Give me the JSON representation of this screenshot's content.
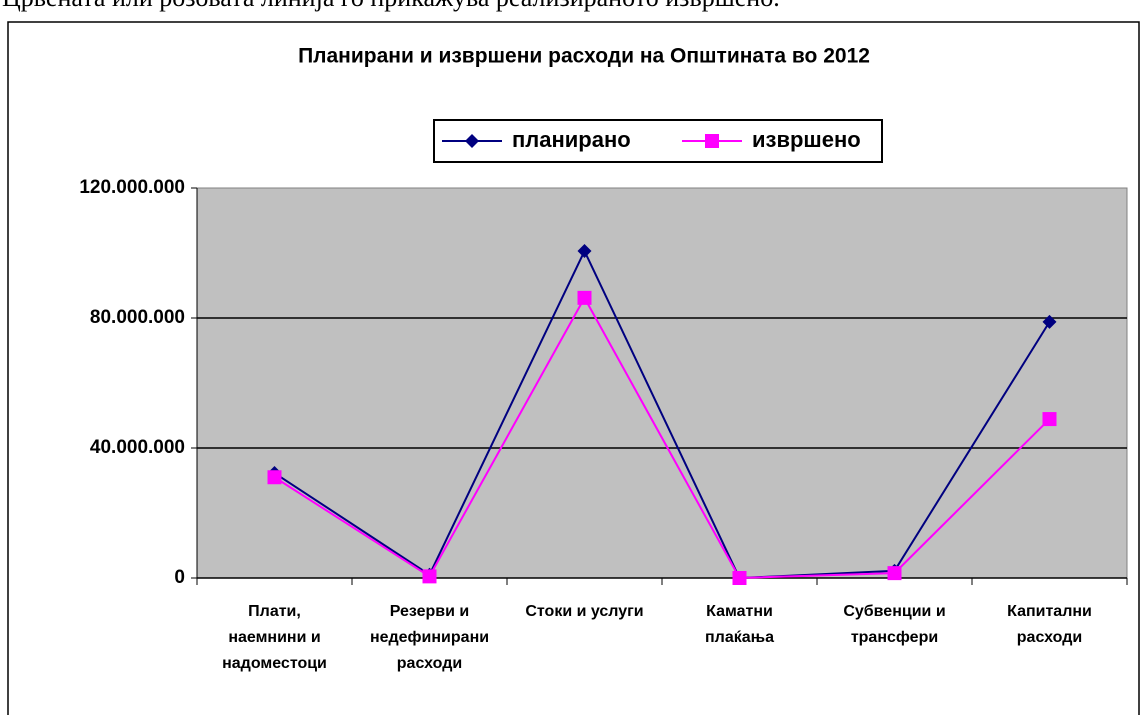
{
  "caption": "Црвената или розовата линија го прикажува реализираното извршено.",
  "chart_data": {
    "type": "line",
    "title": "Планирани и извршени расходи на Општината во 2012",
    "categories": [
      "Плати,\nнаемнини и\nнадоместоци",
      "Резерви и\nнедефинирани\nрасходи",
      "Стоки и услуги",
      "Каматни\nплаќања",
      "Субвенции и\nтрансфери",
      "Капитални\nрасходи"
    ],
    "series": [
      {
        "name": "планирано",
        "color": "#000080",
        "marker": "diamond",
        "values": [
          32300000,
          1000000,
          100600000,
          0,
          2200000,
          78800000
        ]
      },
      {
        "name": "извршено",
        "color": "#ff00ff",
        "marker": "square",
        "values": [
          31000000,
          500000,
          86200000,
          0,
          1500000,
          48900000
        ]
      }
    ],
    "ylim": [
      0,
      120000000
    ],
    "yticks": [
      0,
      {
        "value": 40000000,
        "label": "40.000.000"
      },
      {
        "value": 80000000,
        "label": "80.000.000"
      },
      {
        "value": 120000000,
        "label": "120.000.000"
      }
    ],
    "grid": true,
    "legend": "top",
    "plot_background": "#c0c0c0"
  }
}
